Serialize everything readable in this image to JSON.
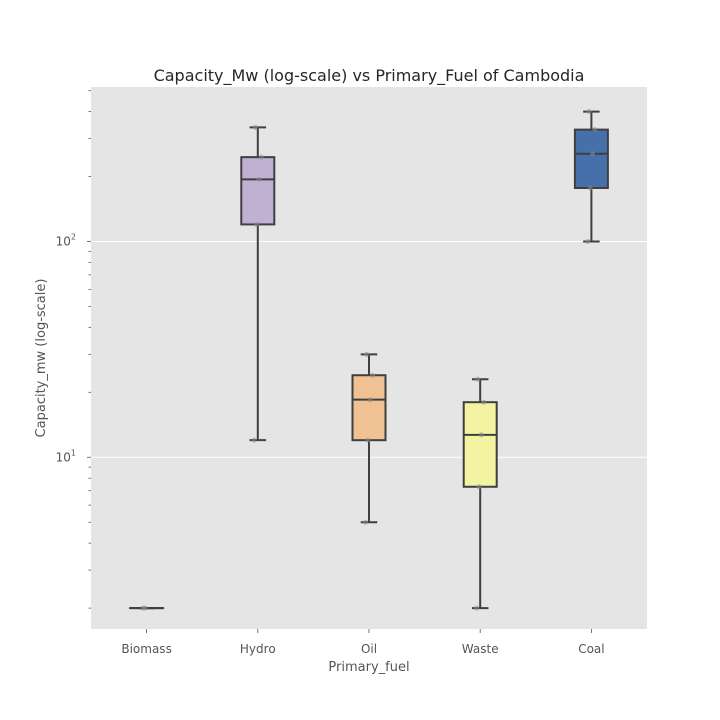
{
  "chart_data": {
    "type": "box",
    "title": "Capacity_Mw (log-scale) vs  Primary_Fuel of Cambodia",
    "xlabel": "Primary_fuel",
    "ylabel": "Capacity_mw (log-scale)",
    "yscale": "log",
    "ylim": [
      1.6,
      520
    ],
    "yticks": [
      {
        "base": "10",
        "exp": "1",
        "value": 10
      },
      {
        "base": "10",
        "exp": "2",
        "value": 100
      }
    ],
    "grid": true,
    "categories": [
      "Biomass",
      "Hydro",
      "Oil",
      "Waste",
      "Coal"
    ],
    "series": [
      {
        "category": "Biomass",
        "min": 2.0,
        "q1": 2.0,
        "median": 2.0,
        "q3": 2.0,
        "max": 2.0,
        "color": "#c0b1d2",
        "points": [
          2.0,
          2.0
        ]
      },
      {
        "category": "Hydro",
        "min": 12,
        "q1": 120,
        "median": 194,
        "q3": 246,
        "max": 338,
        "color": "#c0b1d2",
        "points": [
          12,
          120,
          194,
          246,
          338
        ]
      },
      {
        "category": "Oil",
        "min": 5,
        "q1": 12,
        "median": 18.5,
        "q3": 24,
        "max": 30,
        "color": "#efc193",
        "points": [
          5,
          12,
          18.5,
          24,
          30
        ]
      },
      {
        "category": "Waste",
        "min": 2,
        "q1": 7.3,
        "median": 12.7,
        "q3": 18,
        "max": 23,
        "color": "#f3f3a2",
        "points": [
          2,
          7.3,
          12.7,
          18,
          23
        ]
      },
      {
        "category": "Coal",
        "min": 100,
        "q1": 177,
        "median": 255,
        "q3": 330,
        "max": 400,
        "color": "#4570aa",
        "points": [
          100,
          177,
          255,
          330,
          400
        ]
      }
    ]
  }
}
